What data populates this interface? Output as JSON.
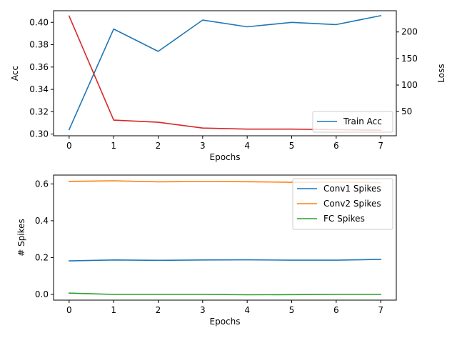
{
  "chart_data": [
    {
      "type": "line",
      "xlabel": "Epochs",
      "ylabel": "Acc",
      "ylabel_right": "Loss",
      "x": [
        0,
        1,
        2,
        3,
        4,
        5,
        6,
        7
      ],
      "xticks": [
        "0",
        "1",
        "2",
        "3",
        "4",
        "5",
        "6",
        "7"
      ],
      "xlim": [
        -0.35,
        7.35
      ],
      "ylim": [
        0.2985,
        0.4104
      ],
      "yticks": [
        "0.30",
        "0.32",
        "0.34",
        "0.36",
        "0.38",
        "0.40"
      ],
      "ylim_right": [
        4.5,
        240
      ],
      "yticks_right": [
        "50",
        "100",
        "150",
        "200"
      ],
      "legend_position": "lower right",
      "series": [
        {
          "name": "Train Acc",
          "axis": "left",
          "color": "#1f77b4",
          "values": [
            0.304,
            0.394,
            0.374,
            0.402,
            0.396,
            0.4,
            0.398,
            0.406
          ]
        },
        {
          "axis": "right",
          "color": "#d62728",
          "values": [
            230,
            34,
            30,
            19,
            17,
            17,
            16,
            15
          ]
        }
      ]
    },
    {
      "type": "line",
      "xlabel": "Epochs",
      "ylabel": "# Spikes",
      "x": [
        0,
        1,
        2,
        3,
        4,
        5,
        6,
        7
      ],
      "xticks": [
        "0",
        "1",
        "2",
        "3",
        "4",
        "5",
        "6",
        "7"
      ],
      "xlim": [
        -0.35,
        7.35
      ],
      "ylim": [
        -0.031,
        0.648
      ],
      "yticks": [
        "0.0",
        "0.2",
        "0.4",
        "0.6"
      ],
      "legend_position": "upper right",
      "series": [
        {
          "name": "Conv1 Spikes",
          "color": "#1f77b4",
          "values": [
            0.182,
            0.187,
            0.185,
            0.187,
            0.188,
            0.186,
            0.186,
            0.19
          ]
        },
        {
          "name": "Conv2 Spikes",
          "color": "#ff7f0e",
          "values": [
            0.614,
            0.617,
            0.611,
            0.613,
            0.612,
            0.609,
            0.61,
            0.607
          ]
        },
        {
          "name": "FC Spikes",
          "color": "#2ca02c",
          "values": [
            0.007,
            0.0,
            0.0,
            0.0,
            -0.002,
            -0.001,
            0.0,
            0.0
          ]
        }
      ]
    }
  ]
}
